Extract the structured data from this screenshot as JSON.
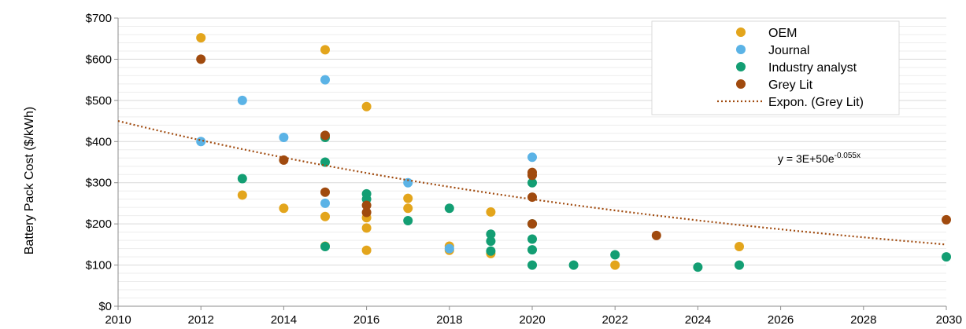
{
  "chart_data": {
    "type": "scatter",
    "title": "",
    "xlabel": "",
    "ylabel": "Battery Pack Cost ($/kWh)",
    "xlim": [
      2010,
      2030
    ],
    "ylim": [
      0,
      700
    ],
    "x_ticks": [
      "2010",
      "2012",
      "2014",
      "2016",
      "2018",
      "2020",
      "2022",
      "2024",
      "2026",
      "2028",
      "2030"
    ],
    "y_ticks": [
      "$0",
      "$100",
      "$200",
      "$300",
      "$400",
      "$500",
      "$600",
      "$700"
    ],
    "grid": "horizontal",
    "legend_position": "top-right",
    "colors": {
      "OEM": "#E3A51C",
      "Journal": "#5BB3E6",
      "Industry analyst": "#139E73",
      "Grey Lit": "#A04A0E",
      "trendline": "#A04A0E"
    },
    "series": [
      {
        "name": "OEM",
        "points": [
          [
            2012,
            652
          ],
          [
            2013,
            270
          ],
          [
            2014,
            238
          ],
          [
            2015,
            623
          ],
          [
            2015,
            218
          ],
          [
            2015,
            146
          ],
          [
            2016,
            485
          ],
          [
            2016,
            215
          ],
          [
            2016,
            190
          ],
          [
            2016,
            136
          ],
          [
            2017,
            262
          ],
          [
            2017,
            238
          ],
          [
            2018,
            146
          ],
          [
            2018,
            136
          ],
          [
            2019,
            229
          ],
          [
            2019,
            128
          ],
          [
            2022,
            100
          ],
          [
            2025,
            145
          ]
        ]
      },
      {
        "name": "Journal",
        "points": [
          [
            2012,
            400
          ],
          [
            2013,
            500
          ],
          [
            2014,
            410
          ],
          [
            2015,
            550
          ],
          [
            2015,
            250
          ],
          [
            2017,
            300
          ],
          [
            2018,
            140
          ],
          [
            2020,
            362
          ]
        ]
      },
      {
        "name": "Industry analyst",
        "points": [
          [
            2013,
            310
          ],
          [
            2015,
            410
          ],
          [
            2015,
            350
          ],
          [
            2015,
            145
          ],
          [
            2016,
            273
          ],
          [
            2016,
            260
          ],
          [
            2017,
            208
          ],
          [
            2018,
            238
          ],
          [
            2019,
            175
          ],
          [
            2019,
            158
          ],
          [
            2019,
            134
          ],
          [
            2020,
            300
          ],
          [
            2020,
            200
          ],
          [
            2020,
            163
          ],
          [
            2020,
            137
          ],
          [
            2020,
            100
          ],
          [
            2021,
            100
          ],
          [
            2022,
            125
          ],
          [
            2024,
            95
          ],
          [
            2025,
            100
          ],
          [
            2030,
            120
          ]
        ]
      },
      {
        "name": "Grey Lit",
        "points": [
          [
            2012,
            600
          ],
          [
            2014,
            355
          ],
          [
            2015,
            415
          ],
          [
            2015,
            277
          ],
          [
            2016,
            245
          ],
          [
            2016,
            228
          ],
          [
            2020,
            325
          ],
          [
            2020,
            318
          ],
          [
            2020,
            265
          ],
          [
            2020,
            200
          ],
          [
            2023,
            172
          ],
          [
            2030,
            210
          ]
        ]
      }
    ],
    "trendline": {
      "name": "Expon. (Grey Lit)",
      "series": "Grey Lit",
      "style": "dotted",
      "start": [
        2010,
        450
      ],
      "end": [
        2030,
        150
      ],
      "equation_prefix": "y = 3E+50e",
      "equation_exponent": "-0.055x"
    },
    "legend": [
      "OEM",
      "Journal",
      "Industry analyst",
      "Grey Lit",
      "Expon. (Grey Lit)"
    ]
  }
}
